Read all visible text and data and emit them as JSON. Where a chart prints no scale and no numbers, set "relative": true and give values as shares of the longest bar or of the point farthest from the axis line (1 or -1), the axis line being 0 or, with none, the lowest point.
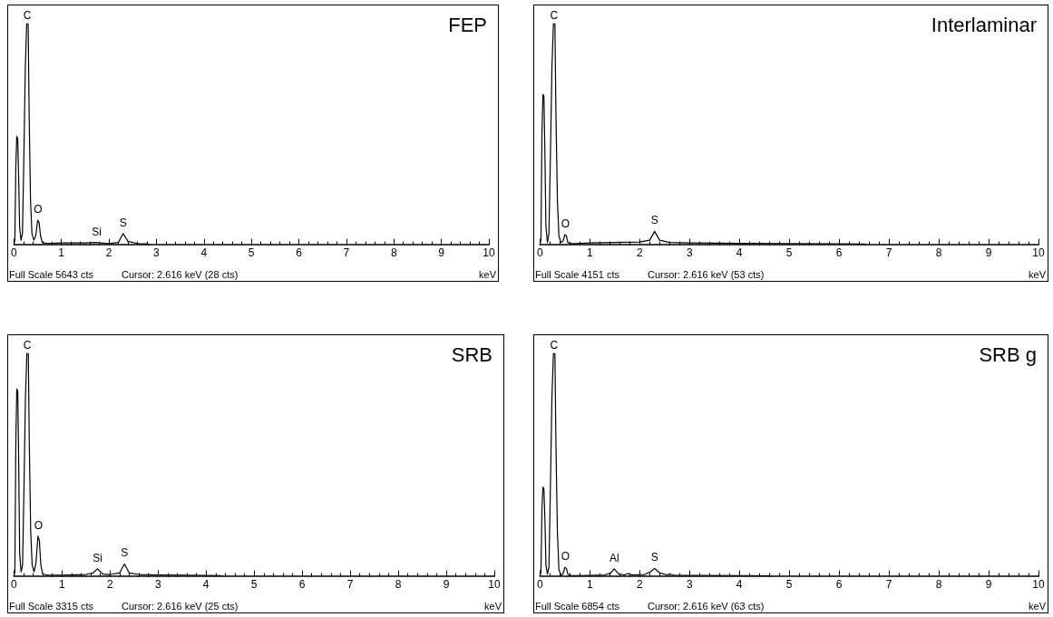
{
  "chart_data": [
    {
      "type": "line",
      "title": "FEP",
      "xlabel": "keV",
      "relative": true,
      "tick_labels": "x",
      "marker": "none",
      "xlim": [
        0,
        10
      ],
      "xticks": [
        0,
        1,
        2,
        3,
        4,
        5,
        6,
        7,
        8,
        9,
        10
      ],
      "series": [
        {
          "color": "#000000",
          "x": [
            0,
            0.02,
            0.04,
            0.06,
            0.08,
            0.1,
            0.12,
            0.15,
            0.18,
            0.21,
            0.24,
            0.27,
            0.3,
            0.32,
            0.35,
            0.38,
            0.42,
            0.46,
            0.5,
            0.53,
            0.56,
            0.6,
            0.7,
            1.0,
            1.5,
            1.7,
            2.0,
            2.2,
            2.3,
            2.4,
            2.6,
            2.8,
            2.85
          ],
          "values": [
            0,
            0.02,
            0.35,
            0.49,
            0.48,
            0.3,
            0.08,
            0.02,
            0.05,
            0.4,
            0.8,
            1,
            1,
            0.6,
            0.2,
            0.05,
            0.02,
            0.04,
            0.11,
            0.1,
            0.04,
            0.01,
            0.005,
            0.008,
            0.008,
            0.01,
            0.005,
            0.01,
            0.05,
            0.015,
            0.005,
            0.004,
            0
          ]
        }
      ],
      "annotations": [
        {
          "text": "C",
          "x": 0.28,
          "y": 1
        },
        {
          "text": "O",
          "x": 0.51,
          "y": 0.11
        },
        {
          "text": "Si",
          "x": 1.74,
          "y": 0.01
        },
        {
          "text": "S",
          "x": 2.3,
          "y": 0.05
        },
        "Full Scale 5643 cts",
        "Cursor: 2.616 keV (28 cts)"
      ]
    },
    {
      "type": "line",
      "title": "Interlaminar",
      "xlabel": "keV",
      "relative": true,
      "tick_labels": "x",
      "marker": "none",
      "xlim": [
        0,
        10
      ],
      "xticks": [
        0,
        1,
        2,
        3,
        4,
        5,
        6,
        7,
        8,
        9,
        10
      ],
      "series": [
        {
          "color": "#000000",
          "x": [
            0,
            0.02,
            0.04,
            0.06,
            0.08,
            0.1,
            0.12,
            0.15,
            0.18,
            0.21,
            0.24,
            0.27,
            0.3,
            0.32,
            0.35,
            0.38,
            0.42,
            0.46,
            0.5,
            0.53,
            0.56,
            0.6,
            0.7,
            1.0,
            1.5,
            2.0,
            2.2,
            2.3,
            2.4,
            2.6,
            3.0,
            4.0,
            5.0,
            6.0,
            6.5,
            6.55
          ],
          "values": [
            0,
            0.02,
            0.5,
            0.68,
            0.67,
            0.4,
            0.08,
            0.01,
            0.05,
            0.4,
            0.8,
            1,
            1,
            0.6,
            0.2,
            0.04,
            0.01,
            0.015,
            0.045,
            0.04,
            0.01,
            0.005,
            0.005,
            0.008,
            0.01,
            0.012,
            0.02,
            0.06,
            0.02,
            0.01,
            0.008,
            0.006,
            0.005,
            0.004,
            0.003,
            0
          ]
        }
      ],
      "annotations": [
        {
          "text": "C",
          "x": 0.28,
          "y": 1
        },
        {
          "text": "O",
          "x": 0.51,
          "y": 0.045
        },
        {
          "text": "S",
          "x": 2.3,
          "y": 0.06
        },
        "Full Scale 4151 cts",
        "Cursor: 2.616 keV (53 cts)"
      ]
    },
    {
      "type": "line",
      "title": "SRB",
      "xlabel": "keV",
      "relative": true,
      "tick_labels": "x",
      "marker": "none",
      "xlim": [
        0,
        10
      ],
      "xticks": [
        0,
        1,
        2,
        3,
        4,
        5,
        6,
        7,
        8,
        9,
        10
      ],
      "series": [
        {
          "color": "#000000",
          "x": [
            0,
            0.02,
            0.04,
            0.06,
            0.08,
            0.1,
            0.12,
            0.15,
            0.18,
            0.21,
            0.24,
            0.27,
            0.3,
            0.32,
            0.35,
            0.38,
            0.42,
            0.46,
            0.5,
            0.53,
            0.56,
            0.6,
            0.7,
            1.0,
            1.5,
            1.65,
            1.74,
            1.85,
            2.0,
            2.2,
            2.3,
            2.4,
            2.6,
            3.0,
            3.5,
            4.0,
            4.3,
            4.35
          ],
          "values": [
            0,
            0.02,
            0.6,
            0.84,
            0.83,
            0.5,
            0.1,
            0.02,
            0.05,
            0.4,
            0.8,
            1,
            1,
            0.6,
            0.2,
            0.05,
            0.02,
            0.06,
            0.18,
            0.16,
            0.05,
            0.01,
            0.005,
            0.005,
            0.008,
            0.015,
            0.033,
            0.01,
            0.008,
            0.015,
            0.055,
            0.015,
            0.008,
            0.006,
            0.005,
            0.004,
            0.003,
            0
          ]
        }
      ],
      "annotations": [
        {
          "text": "C",
          "x": 0.28,
          "y": 1
        },
        {
          "text": "O",
          "x": 0.51,
          "y": 0.18
        },
        {
          "text": "Si",
          "x": 1.74,
          "y": 0.033
        },
        {
          "text": "S",
          "x": 2.3,
          "y": 0.055
        },
        "Full Scale 3315 cts",
        "Cursor: 2.616 keV (25 cts)"
      ]
    },
    {
      "type": "line",
      "title": "SRB g",
      "xlabel": "keV",
      "relative": true,
      "tick_labels": "x",
      "marker": "none",
      "xlim": [
        0,
        10
      ],
      "xticks": [
        0,
        1,
        2,
        3,
        4,
        5,
        6,
        7,
        8,
        9,
        10
      ],
      "series": [
        {
          "color": "#000000",
          "x": [
            0,
            0.02,
            0.04,
            0.06,
            0.08,
            0.1,
            0.12,
            0.15,
            0.18,
            0.21,
            0.24,
            0.27,
            0.3,
            0.32,
            0.35,
            0.38,
            0.42,
            0.46,
            0.5,
            0.53,
            0.56,
            0.6,
            0.7,
            1.0,
            1.3,
            1.42,
            1.49,
            1.58,
            1.7,
            1.76,
            1.85,
            2.1,
            2.22,
            2.3,
            2.4,
            2.55,
            2.6,
            2.7,
            3.0,
            4.0,
            4.6,
            4.65
          ],
          "values": [
            0,
            0.02,
            0.3,
            0.4,
            0.39,
            0.25,
            0.05,
            0.01,
            0.04,
            0.4,
            0.8,
            1,
            1,
            0.6,
            0.2,
            0.03,
            0.005,
            0.01,
            0.04,
            0.035,
            0.01,
            0.003,
            0.003,
            0.004,
            0.006,
            0.015,
            0.033,
            0.01,
            0.006,
            0.012,
            0.006,
            0.008,
            0.02,
            0.035,
            0.015,
            0.006,
            0.01,
            0.004,
            0.004,
            0.003,
            0.002,
            0
          ]
        }
      ],
      "annotations": [
        {
          "text": "C",
          "x": 0.28,
          "y": 1
        },
        {
          "text": "O",
          "x": 0.51,
          "y": 0.04
        },
        {
          "text": "Al",
          "x": 1.49,
          "y": 0.033
        },
        {
          "text": "S",
          "x": 2.3,
          "y": 0.035
        },
        "Full Scale 6854 cts",
        "Cursor: 2.616 keV (63 cts)"
      ]
    }
  ]
}
